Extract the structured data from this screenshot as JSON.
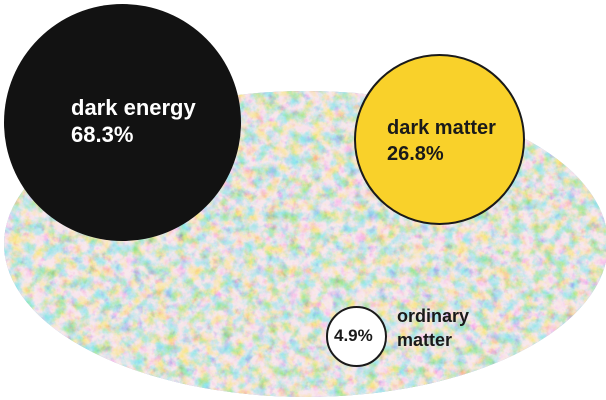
{
  "colors": {
    "dark_energy": "#121212",
    "dark_matter": "#f9d12a",
    "ordinary_matter": "#ffffff",
    "cmb_blue": "#5b8fc9",
    "cmb_orange": "#e8a25a",
    "cmb_red": "#c9422c"
  },
  "components": {
    "dark_energy": {
      "name": "dark energy",
      "percent": "68.3%",
      "value": 68.3
    },
    "dark_matter": {
      "name": "dark matter",
      "percent": "26.8%",
      "value": 26.8
    },
    "ordinary_matter": {
      "name_line1": "ordinary",
      "name_line2": "matter",
      "percent": "4.9%",
      "value": 4.9
    }
  },
  "background": {
    "icon": "cmb-sky-map-icon"
  }
}
